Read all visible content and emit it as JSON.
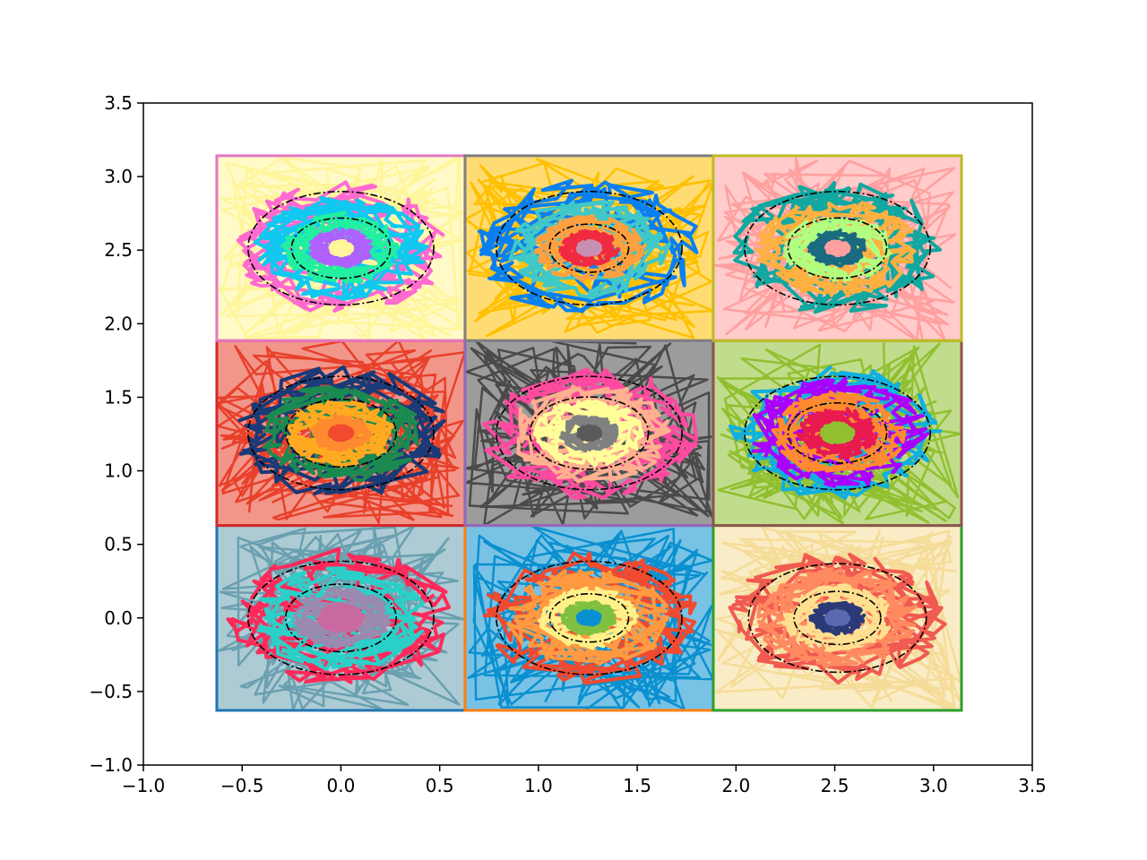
{
  "chart_data": {
    "type": "line",
    "title": "",
    "xlabel": "",
    "ylabel": "",
    "xlim": [
      -1.0,
      3.5
    ],
    "ylim": [
      -1.0,
      3.5
    ],
    "xticks": [
      "−1.0",
      "−0.5",
      "0.0",
      "0.5",
      "1.0",
      "1.5",
      "2.0",
      "2.5",
      "3.0",
      "3.5"
    ],
    "yticks": [
      "−1.0",
      "−0.5",
      "0.0",
      "0.5",
      "1.0",
      "1.5",
      "2.0",
      "2.5",
      "3.0",
      "3.5"
    ],
    "xtick_values": [
      -1.0,
      -0.5,
      0.0,
      0.5,
      1.0,
      1.5,
      2.0,
      2.5,
      3.0,
      3.5
    ],
    "ytick_values": [
      -1.0,
      -0.5,
      0.0,
      0.5,
      1.0,
      1.5,
      2.0,
      2.5,
      3.0,
      3.5
    ],
    "grid": false,
    "legend": "none",
    "cell_size": 1.2566,
    "cells": [
      {
        "row": 0,
        "col": 0,
        "center": [
          0.0,
          0.0
        ],
        "border_color": "#1f77b4",
        "background": "#6aa0b0",
        "rings": [
          {
            "r": 0.5,
            "color": "#ff2a5a"
          },
          {
            "r": 0.38,
            "color": "#2ad0c8"
          },
          {
            "r": 0.22,
            "color": "#9a8ab0"
          },
          {
            "r": 0.1,
            "color": "#c86aa0"
          }
        ],
        "dashed_rings": [
          0.47,
          0.28
        ]
      },
      {
        "row": 0,
        "col": 1,
        "center": [
          1.2566,
          0.0
        ],
        "border_color": "#ff7f0e",
        "background": "#0a90d0",
        "rings": [
          {
            "r": 0.48,
            "color": "#f04a30"
          },
          {
            "r": 0.36,
            "color": "#ff9a40"
          },
          {
            "r": 0.22,
            "color": "#fff08a"
          },
          {
            "r": 0.12,
            "color": "#80c040"
          },
          {
            "r": 0.05,
            "color": "#0a90d0"
          }
        ],
        "dashed_rings": [
          0.47,
          0.2
        ]
      },
      {
        "row": 0,
        "col": 2,
        "center": [
          2.5133,
          0.0
        ],
        "border_color": "#2ca02c",
        "background": "#f5dc98",
        "rings": [
          {
            "r": 0.48,
            "color": "#f05a50"
          },
          {
            "r": 0.36,
            "color": "#ff8a60"
          },
          {
            "r": 0.24,
            "color": "#ffe090"
          },
          {
            "r": 0.12,
            "color": "#2a3a78"
          },
          {
            "r": 0.05,
            "color": "#5a6ab0"
          }
        ],
        "dashed_rings": [
          0.45,
          0.22
        ]
      },
      {
        "row": 1,
        "col": 0,
        "center": [
          0.0,
          1.2566
        ],
        "border_color": "#d62728",
        "background": "#e8402a",
        "rings": [
          {
            "r": 0.48,
            "color": "#1a3a78"
          },
          {
            "r": 0.36,
            "color": "#1a8a50"
          },
          {
            "r": 0.24,
            "color": "#ffaa20"
          },
          {
            "r": 0.13,
            "color": "#ff8a30"
          },
          {
            "r": 0.05,
            "color": "#f04a30"
          }
        ],
        "dashed_rings": [
          0.47,
          0.28
        ]
      },
      {
        "row": 1,
        "col": 1,
        "center": [
          1.2566,
          1.2566
        ],
        "border_color": "#9467bd",
        "background": "#4a4a4a",
        "rings": [
          {
            "r": 0.48,
            "color": "#ff4aa0"
          },
          {
            "r": 0.36,
            "color": "#ffb090"
          },
          {
            "r": 0.24,
            "color": "#ffff99"
          },
          {
            "r": 0.13,
            "color": "#808080"
          },
          {
            "r": 0.05,
            "color": "#5a5a5a"
          }
        ],
        "dashed_rings": [
          0.47,
          0.3
        ]
      },
      {
        "row": 1,
        "col": 2,
        "center": [
          2.5133,
          1.2566
        ],
        "border_color": "#8c564b",
        "background": "#90c030",
        "rings": [
          {
            "r": 0.48,
            "color": "#10b0e0"
          },
          {
            "r": 0.4,
            "color": "#aa00ff"
          },
          {
            "r": 0.3,
            "color": "#ff8a30"
          },
          {
            "r": 0.18,
            "color": "#e81a50"
          },
          {
            "r": 0.07,
            "color": "#90c030"
          }
        ],
        "dashed_rings": [
          0.47,
          0.25
        ]
      },
      {
        "row": 2,
        "col": 0,
        "center": [
          0.0,
          2.5133
        ],
        "border_color": "#e377c2",
        "background": "#fff59a",
        "rings": [
          {
            "r": 0.48,
            "color": "#ff6ad0"
          },
          {
            "r": 0.38,
            "color": "#10c8f0"
          },
          {
            "r": 0.26,
            "color": "#20f0a0"
          },
          {
            "r": 0.14,
            "color": "#b060ff"
          },
          {
            "r": 0.05,
            "color": "#fff59a"
          }
        ],
        "dashed_rings": [
          0.47,
          0.25
        ]
      },
      {
        "row": 2,
        "col": 1,
        "center": [
          1.2566,
          2.5133
        ],
        "border_color": "#7f7f7f",
        "background": "#ffc000",
        "rings": [
          {
            "r": 0.5,
            "color": "#0a80f0"
          },
          {
            "r": 0.36,
            "color": "#40c8c8"
          },
          {
            "r": 0.24,
            "color": "#ffa040"
          },
          {
            "r": 0.13,
            "color": "#f02a40"
          },
          {
            "r": 0.05,
            "color": "#c890b0"
          }
        ],
        "dashed_rings": [
          0.47,
          0.2
        ]
      },
      {
        "row": 2,
        "col": 2,
        "center": [
          2.5133,
          2.5133
        ],
        "border_color": "#bcbd22",
        "background": "#ffa0a0",
        "rings": [
          {
            "r": 0.48,
            "color": "#10a8a0"
          },
          {
            "r": 0.36,
            "color": "#ffb040"
          },
          {
            "r": 0.24,
            "color": "#b0ff80"
          },
          {
            "r": 0.13,
            "color": "#1a6a80"
          },
          {
            "r": 0.05,
            "color": "#ffa0a0"
          }
        ],
        "dashed_rings": [
          0.47,
          0.25
        ]
      }
    ]
  }
}
